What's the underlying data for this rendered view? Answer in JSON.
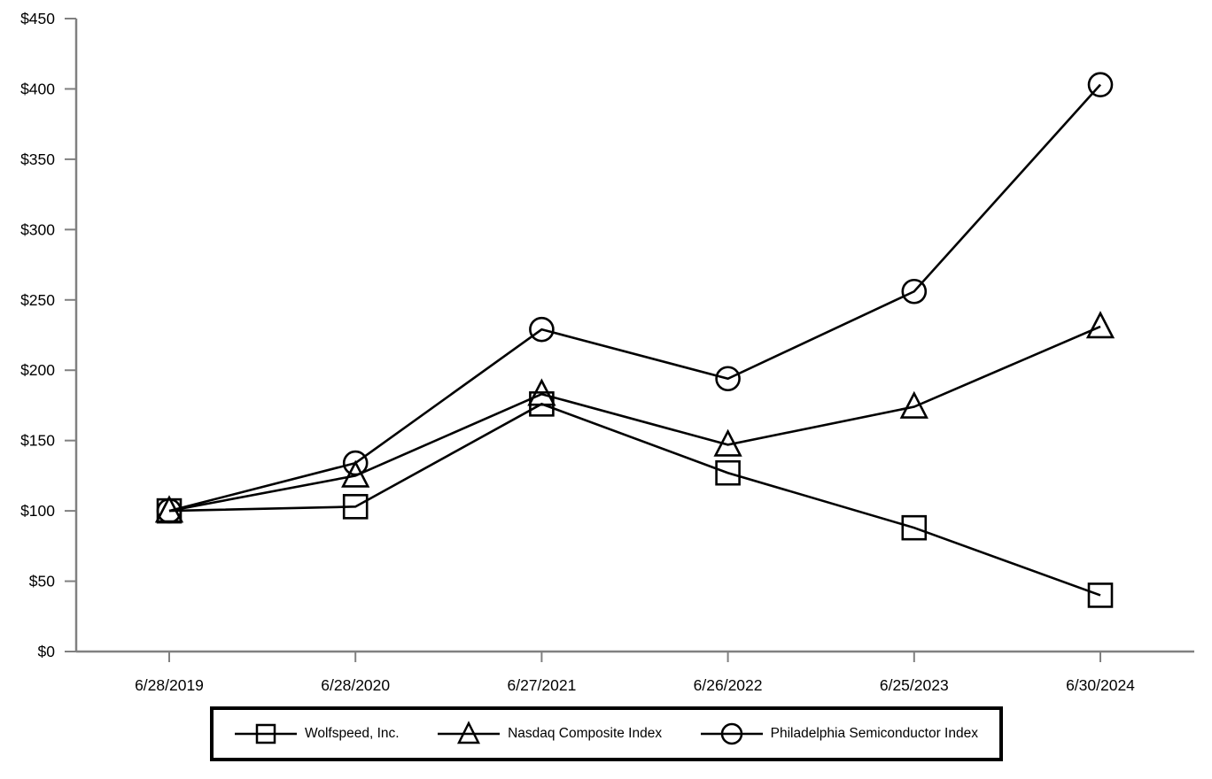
{
  "chart_data": {
    "type": "line",
    "title": "",
    "xlabel": "",
    "ylabel": "",
    "grid": false,
    "legend_position": "bottom",
    "categories": [
      "6/28/2019",
      "6/28/2020",
      "6/27/2021",
      "6/26/2022",
      "6/25/2023",
      "6/30/2024"
    ],
    "series": [
      {
        "name": "Wolfspeed, Inc.",
        "marker": "square",
        "values": [
          100,
          103,
          176,
          127,
          88,
          40
        ]
      },
      {
        "name": "Nasdaq Composite Index",
        "marker": "triangle",
        "values": [
          100,
          125,
          183,
          147,
          174,
          231
        ]
      },
      {
        "name": "Philadelphia Semiconductor Index",
        "marker": "circle",
        "values": [
          100,
          134,
          229,
          194,
          256,
          403
        ]
      }
    ],
    "ylim": [
      0,
      450
    ],
    "y_tick_step": 50,
    "y_tick_labels": [
      "$0",
      "$50",
      "$100",
      "$150",
      "$200",
      "$250",
      "$300",
      "$350",
      "$400",
      "$450"
    ],
    "colors": {
      "line": "#000000",
      "axis": "#808080",
      "text": "#000000",
      "legend_border": "#000000",
      "background": "#ffffff"
    }
  }
}
